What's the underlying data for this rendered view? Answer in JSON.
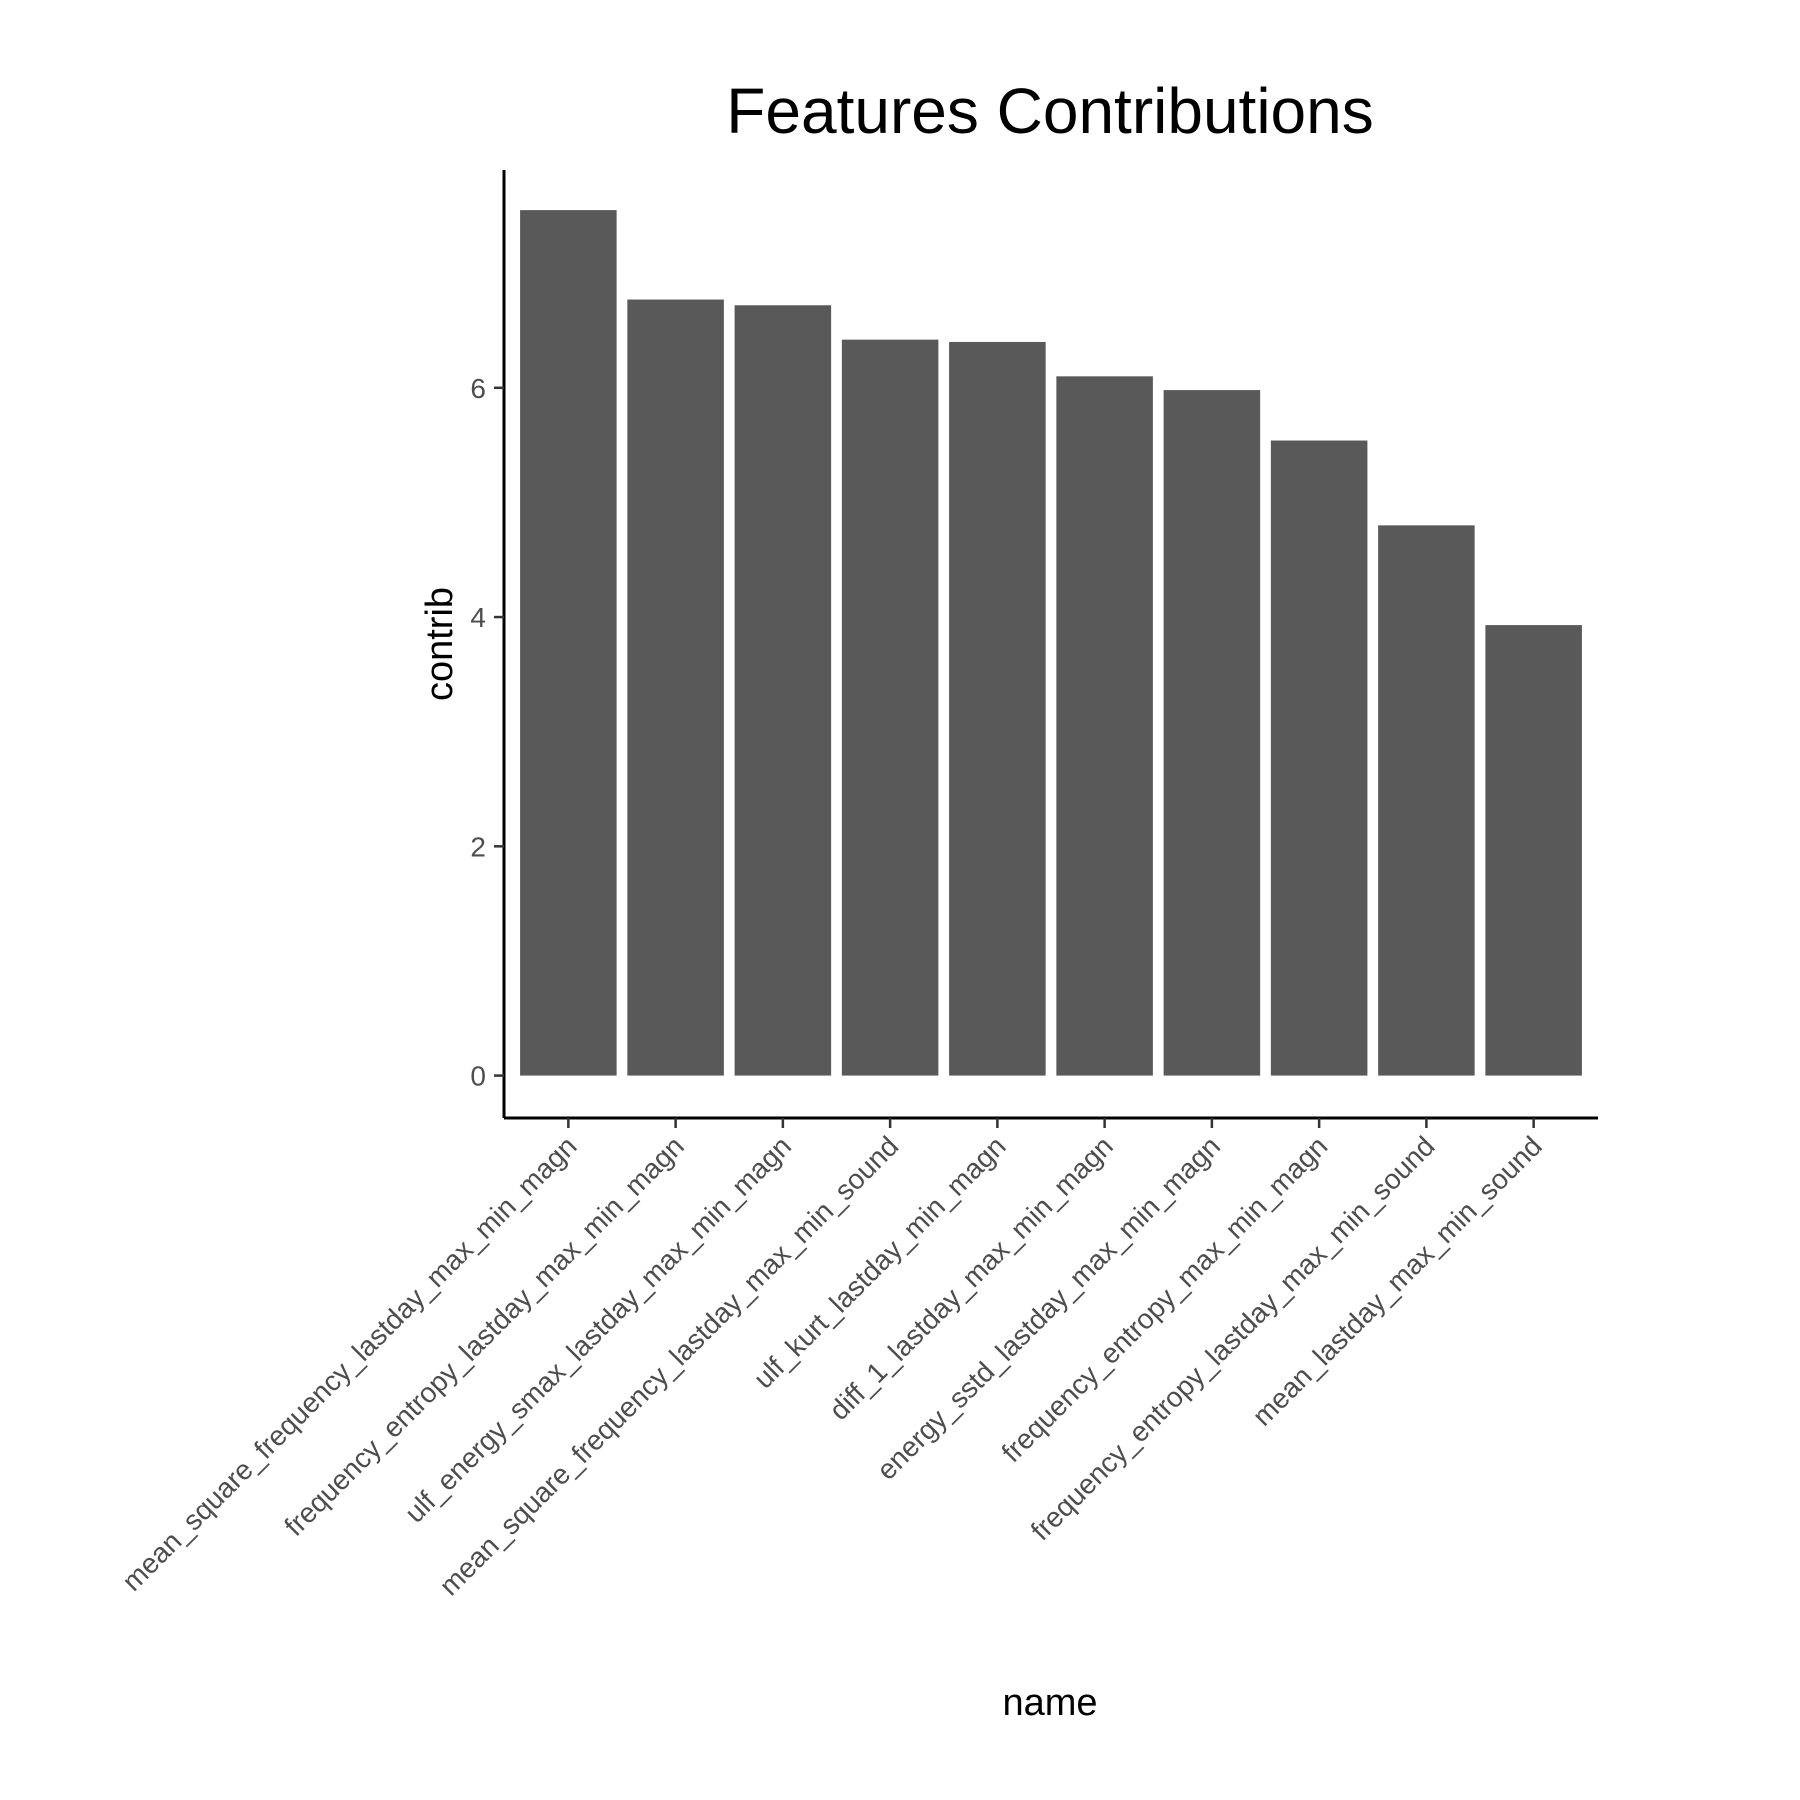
{
  "chart_data": {
    "type": "bar",
    "title": "Features Contributions",
    "xlabel": "name",
    "ylabel": "contrib",
    "categories": [
      "mean_square_frequency_lastday_max_min_magn",
      "frequency_entropy_lastday_max_min_magn",
      "ulf_energy_smax_lastday_max_min_magn",
      "mean_square_frequency_lastday_max_min_sound",
      "ulf_kurt_lastday_min_magn",
      "diff_1_lastday_max_min_magn",
      "energy_sstd_lastday_max_min_magn",
      "frequency_entropy_max_min_magn",
      "frequency_entropy_lastday_max_min_sound",
      "mean_lastday_max_min_sound"
    ],
    "values": [
      7.55,
      6.77,
      6.72,
      6.42,
      6.4,
      6.1,
      5.98,
      5.54,
      4.8,
      3.93
    ],
    "yticks": [
      "0",
      "2",
      "4",
      "6"
    ],
    "ylim": [
      -0.37,
      7.9
    ],
    "bar_color": "#595959",
    "grid": false,
    "legend": "none"
  }
}
